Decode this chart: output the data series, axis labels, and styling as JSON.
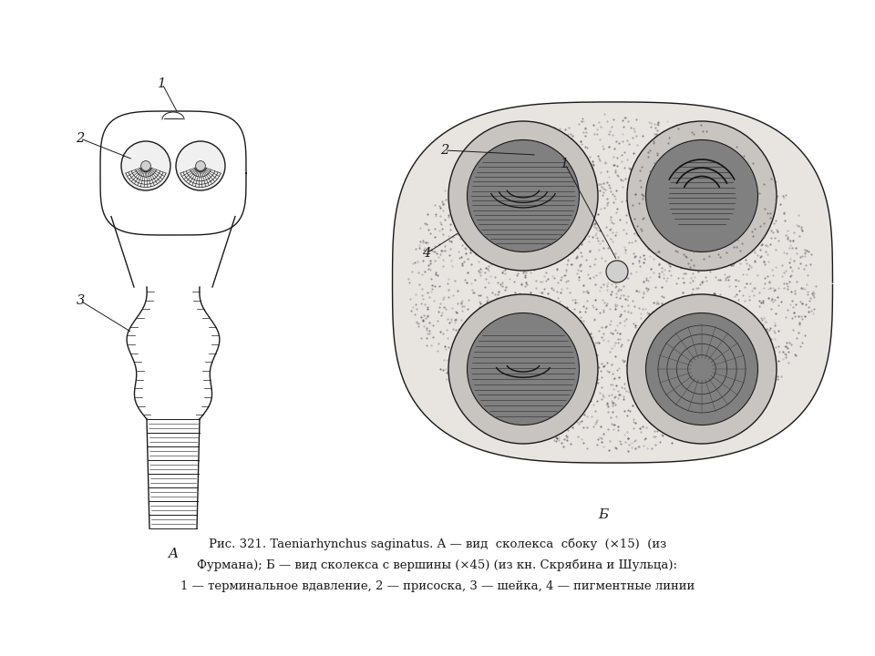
{
  "caption_line1": "Рис. 321. Taeniarhynchus saginatus. A — вид  сколекса  сбоку  (×15)  (из",
  "caption_line2": "Фурмана); Б — вид сколекса с вершины (×45) (из кн. Скрябина и Шульца):",
  "caption_line3": "1 — терминальное вдавление, 2 — присоска, 3 — шейка, 4 — пигментные линии",
  "label_A": "A",
  "label_B": "Б",
  "bg_color": "#ffffff",
  "ink_color": "#1a1a1a",
  "fig_width": 9.6,
  "fig_height": 7.2,
  "dpi": 100
}
